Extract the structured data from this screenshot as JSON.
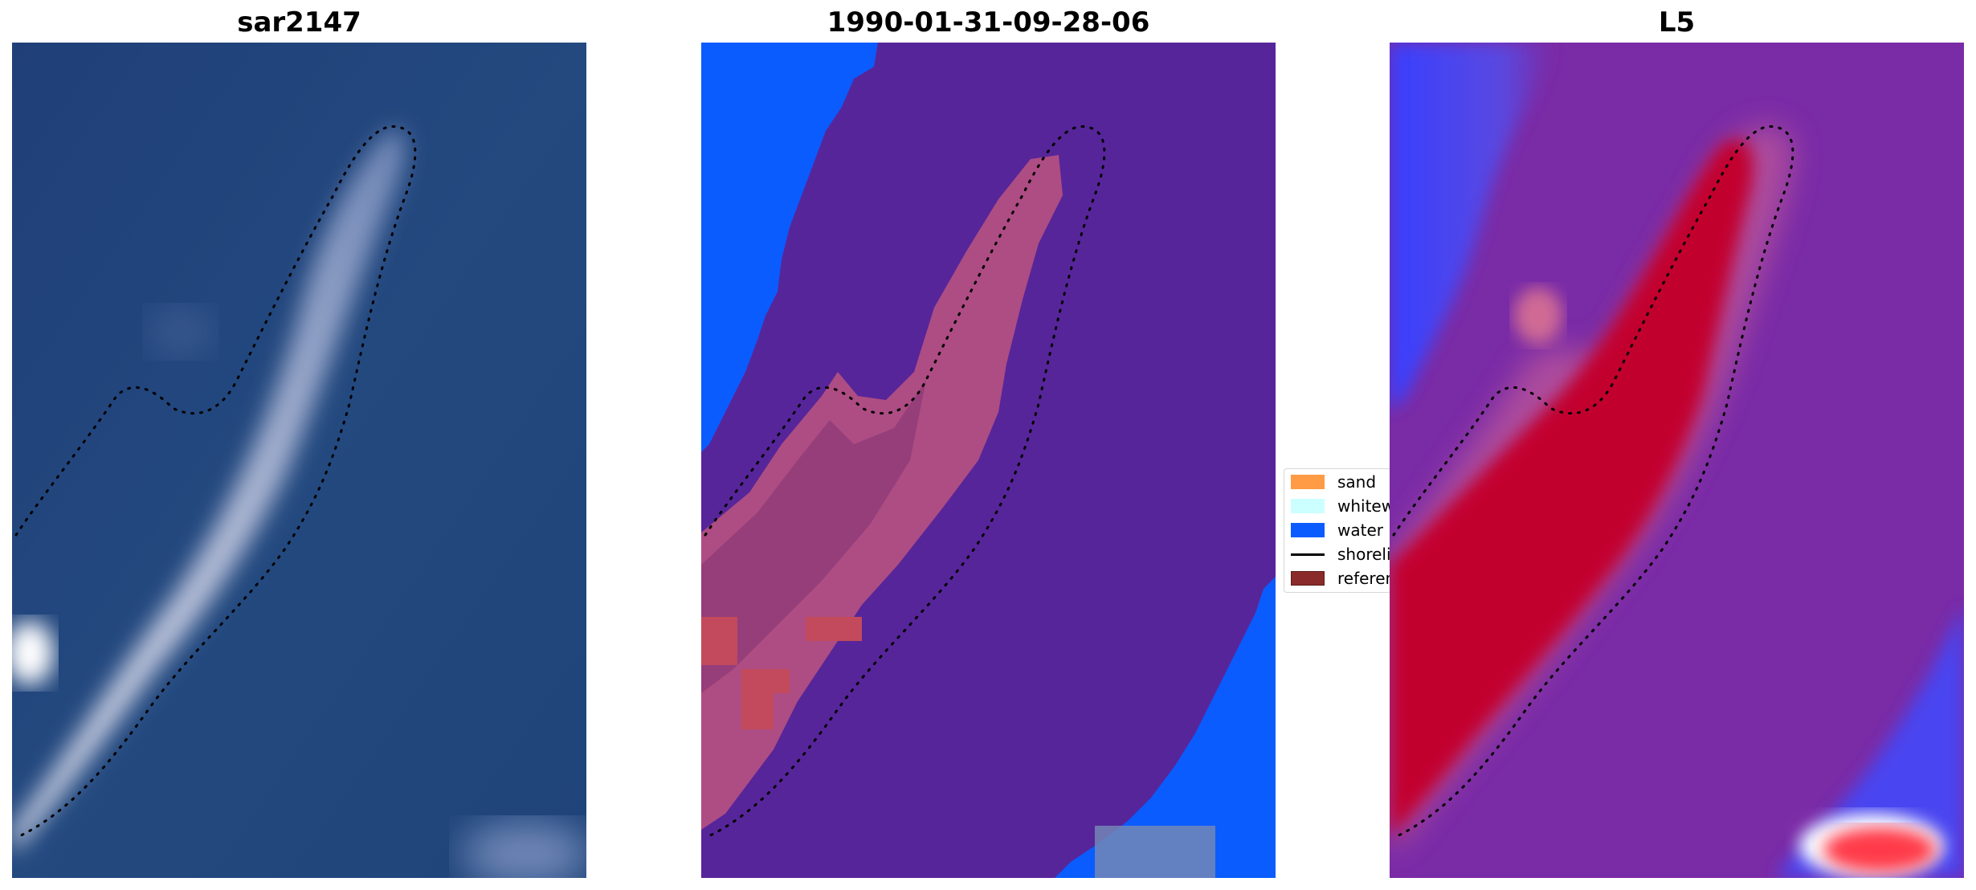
{
  "panels": [
    {
      "title": "sar2147"
    },
    {
      "title": "1990-01-31-09-28-06"
    },
    {
      "title": "L5"
    }
  ],
  "legend": {
    "items": [
      {
        "label": "sand",
        "color": "#ff9a45",
        "kind": "patch"
      },
      {
        "label": "whitewater",
        "color": "#ccffff",
        "kind": "patch"
      },
      {
        "label": "water",
        "color": "#0a5cff",
        "kind": "patch"
      },
      {
        "label": "shoreline",
        "color": "#000000",
        "kind": "line"
      },
      {
        "label": "reference",
        "color": "#8b2a2a",
        "kind": "patch"
      }
    ]
  },
  "colors": {
    "sar_water": "#21457f",
    "class_background": "#57259a",
    "class_water": "#0a5cff",
    "class_sand_overlay": "#b24f82",
    "l5_background": "#7a2ba6",
    "l5_high": "#c2002e",
    "l5_low": "#3a40ff"
  }
}
